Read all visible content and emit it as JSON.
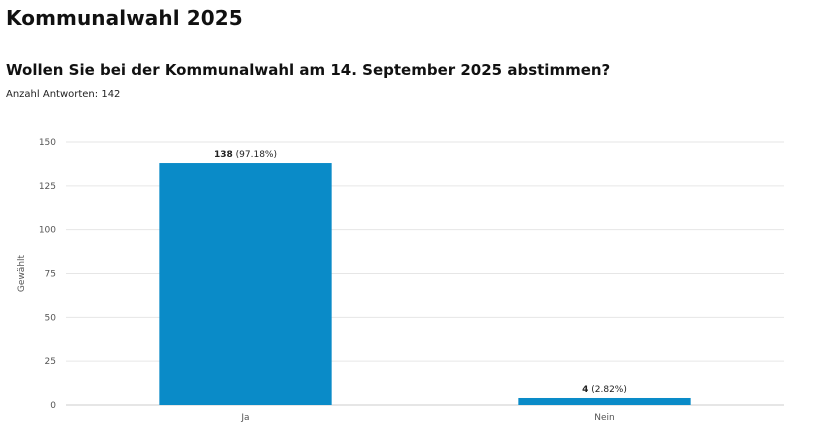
{
  "header": {
    "title": "Kommunalwahl 2025",
    "question": "Wollen Sie bei der Kommunalwahl am 14. September 2025 abstimmen?",
    "answers_label": "Anzahl Antworten:",
    "answers_count": "142"
  },
  "colors": {
    "bar": "#0a8bc8",
    "grid": "#e6e6e6",
    "axis": "#cccccc"
  },
  "chart_data": {
    "type": "bar",
    "categories": [
      "Ja",
      "Nein"
    ],
    "values": [
      138,
      4
    ],
    "data_labels": [
      {
        "value": "138",
        "percent": "(97.18%)"
      },
      {
        "value": "4",
        "percent": "(2.82%)"
      }
    ],
    "xlabel": "",
    "ylabel": "Gewählt",
    "ylim": [
      0,
      150
    ],
    "yticks": [
      0,
      25,
      50,
      75,
      100,
      125,
      150
    ],
    "grid": true
  }
}
